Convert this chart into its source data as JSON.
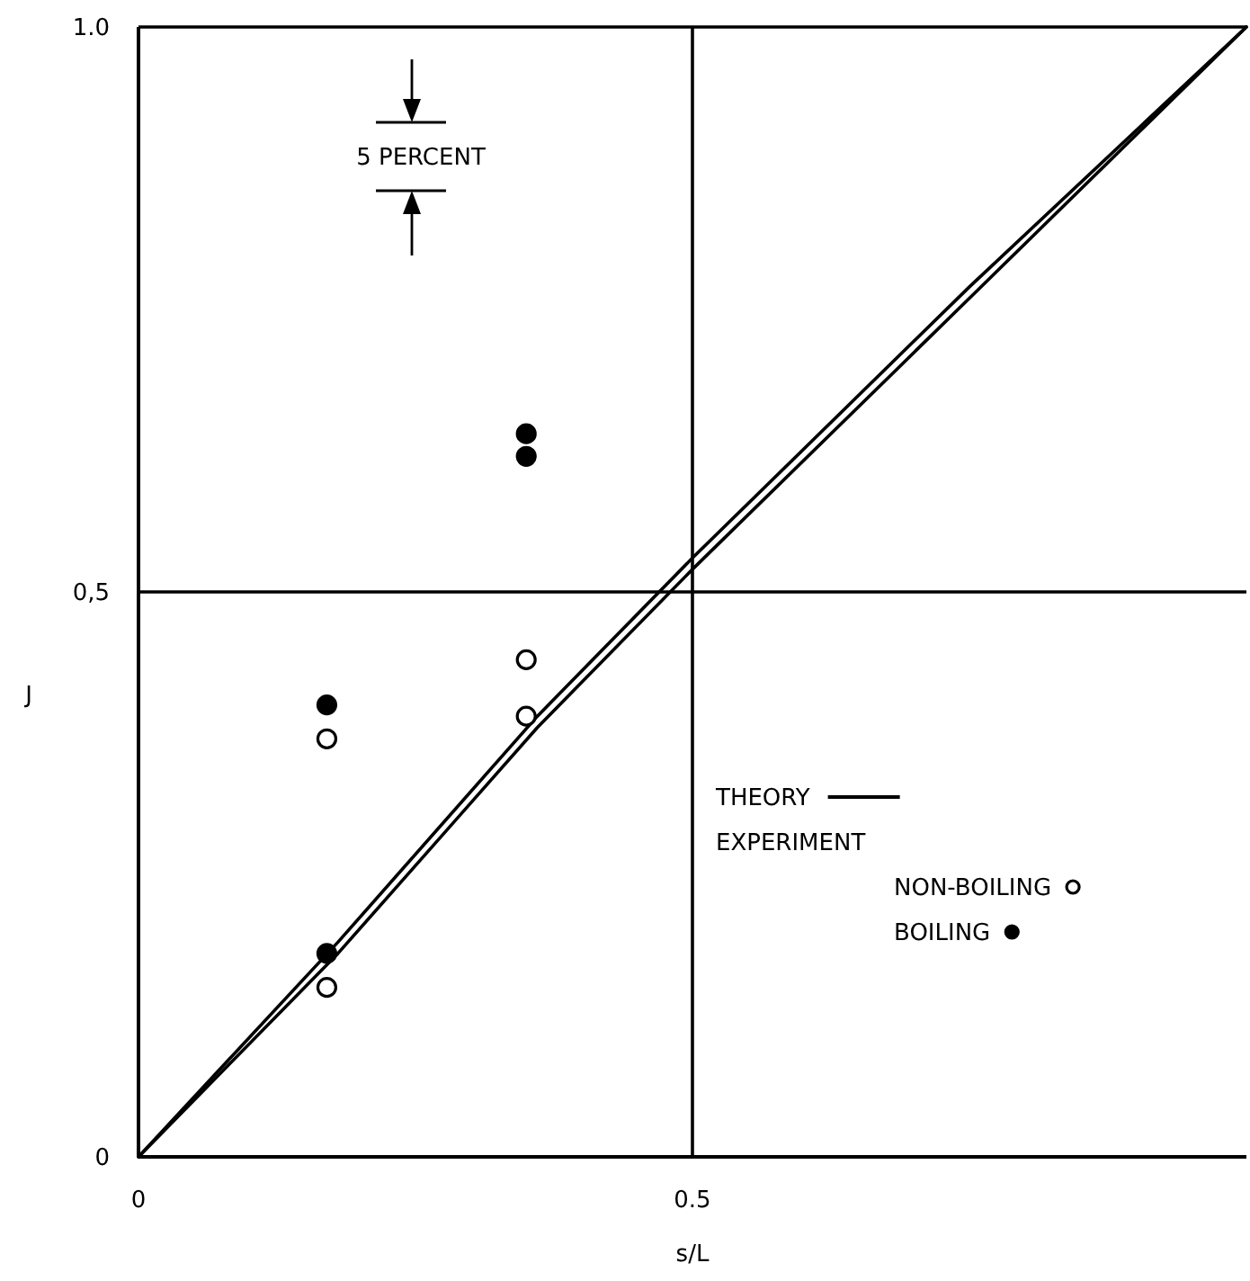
{
  "chart_data": {
    "type": "scatter",
    "xlabel": "s/L",
    "ylabel": "J",
    "xlim": [
      0,
      1
    ],
    "ylim": [
      0,
      1
    ],
    "xticks": [
      0,
      0.5
    ],
    "yticks": [
      0,
      {
        "value": 0.5,
        "label": "0,5"
      },
      {
        "value": 1,
        "label": "1.0"
      }
    ],
    "grid": true,
    "legend": "bottom right",
    "line_style": "solid",
    "annotations": [
      "5 PERCENT",
      "EXPERIMENT"
    ],
    "series": [
      {
        "name": "THEORY",
        "type": "line",
        "color": "#000000",
        "x": [
          0,
          0.18,
          0.36,
          0.5,
          0.75,
          1
        ],
        "values": [
          0,
          0.19,
          0.39,
          0.53,
          0.77,
          1
        ]
      },
      {
        "type": "line",
        "color": "#000000",
        "x": [
          0,
          0.18,
          0.36,
          0.5,
          0.75,
          1
        ],
        "values": [
          0,
          0.18,
          0.38,
          0.52,
          0.76,
          1
        ]
      },
      {
        "name": "NON-BOILING",
        "color": "#000000",
        "marker": "circle",
        "x": [
          0.17,
          0.17,
          0.35,
          0.35
        ],
        "values": [
          0.37,
          0.15,
          0.44,
          0.39
        ]
      },
      {
        "name": "BOILING",
        "color": "#000000",
        "marker": "circle",
        "x": [
          0.17,
          0.17,
          0.35,
          0.35
        ],
        "values": [
          0.4,
          0.18,
          0.64,
          0.62
        ]
      }
    ]
  }
}
